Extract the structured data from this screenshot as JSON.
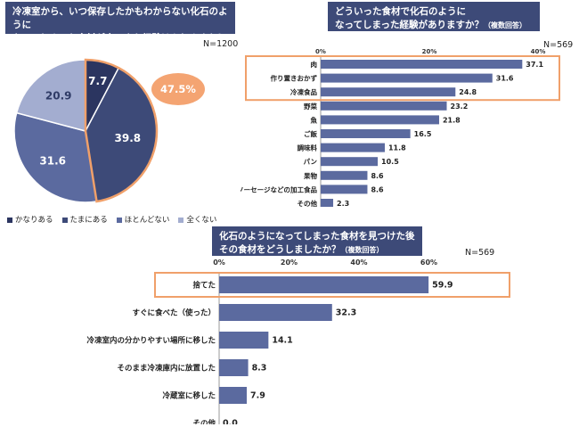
{
  "colors": {
    "title_bg": "#3d4a78",
    "bar": "#5b6a9f",
    "pie": [
      "#3d4a78",
      "#2f3b66",
      "#5b6a9f",
      "#a3add0"
    ],
    "highlight": "#f0a06a",
    "callout": "#f4a472"
  },
  "chart_data": [
    {
      "type": "pie",
      "title_line1": "冷凍室から、いつ保存したかもわからない化石のように",
      "title_line2": "なってしまった食材が出てきた経験はありますか？",
      "title_note": "（単一回答）",
      "n_label": "N=1200",
      "slices": [
        {
          "name": "かなりある",
          "value": 7.7
        },
        {
          "name": "たまにある",
          "value": 39.8
        },
        {
          "name": "ほとんどない",
          "value": 31.6
        },
        {
          "name": "全くない",
          "value": 20.9
        }
      ],
      "callout": "47.5%"
    },
    {
      "type": "bar",
      "title_line1": "どういった食材で化石のように",
      "title_line2": "なってしまった経験がありますか？",
      "title_note": "（複数回答）",
      "n_label": "N=569",
      "xlim": [
        0,
        40
      ],
      "ticks": [
        "0%",
        "20%",
        "40%"
      ],
      "categories": [
        "肉",
        "作り置きおかず",
        "冷凍食品",
        "野菜",
        "魚",
        "ご飯",
        "調味料",
        "パン",
        "果物",
        "ハムやソーセージなどの加工食品",
        "その他"
      ],
      "values": [
        37.1,
        31.6,
        24.8,
        23.2,
        21.8,
        16.5,
        11.8,
        10.5,
        8.6,
        8.6,
        2.3
      ]
    },
    {
      "type": "bar",
      "title_line1": "化石のようになってしまった食材を見つけた後",
      "title_line2": "その食材をどうしましたか？",
      "title_note": "（複数回答）",
      "n_label": "N=569",
      "xlim": [
        0,
        80
      ],
      "ticks": [
        "0%",
        "20%",
        "40%",
        "60%"
      ],
      "categories": [
        "捨てた",
        "すぐに食べた（使った）",
        "冷凍室内の分かりやすい場所に移した",
        "そのまま冷凍庫内に放置した",
        "冷蔵室に移した",
        "その他"
      ],
      "values": [
        59.9,
        32.3,
        14.1,
        8.3,
        7.9,
        0.0
      ]
    }
  ]
}
